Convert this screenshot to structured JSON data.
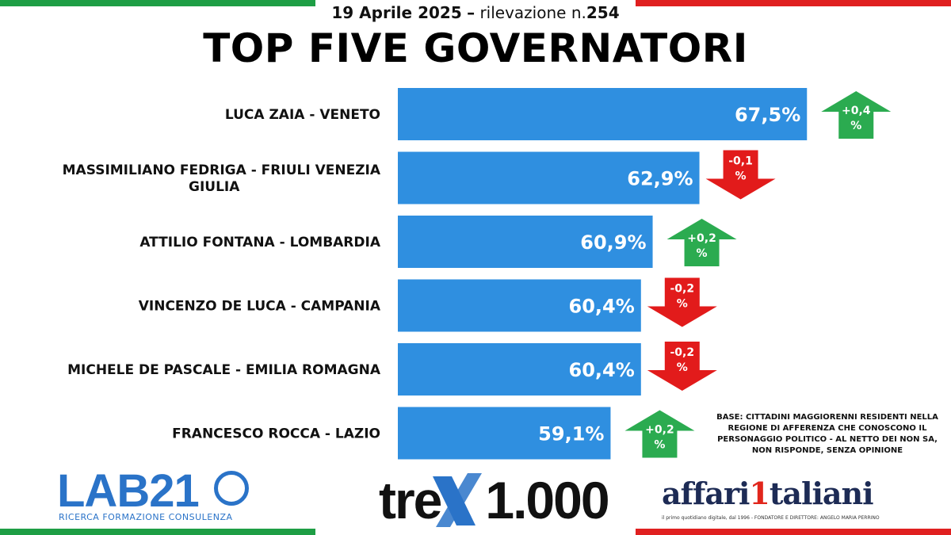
{
  "header": {
    "date": "19 Aprile 2025",
    "dash": "–",
    "survey": "rilevazione n.",
    "survey_number": "254",
    "title": "TOP FIVE GOVERNATORI"
  },
  "colors": {
    "bar": "#2f8fe0",
    "up": "#2bab50",
    "down": "#e21b1b",
    "flag_green": "#1e9e45",
    "flag_red": "#e02020"
  },
  "chart_data": {
    "type": "bar",
    "orientation": "horizontal",
    "categories": [
      "LUCA ZAIA - VENETO",
      "MASSIMILIANO FEDRIGA - FRIULI VENEZIA GIULIA",
      "ATTILIO FONTANA - LOMBARDIA",
      "VINCENZO DE LUCA - CAMPANIA",
      "MICHELE DE PASCALE - EMILIA ROMAGNA",
      "FRANCESCO ROCCA - LAZIO"
    ],
    "values": [
      67.5,
      62.9,
      60.9,
      60.4,
      60.4,
      59.1
    ],
    "value_labels": [
      "67,5%",
      "62,9%",
      "60,9%",
      "60,4%",
      "60,4%",
      "59,1%"
    ],
    "changes": [
      0.4,
      -0.1,
      0.2,
      -0.2,
      -0.2,
      0.2
    ],
    "change_labels": [
      [
        "+0,4",
        "%"
      ],
      [
        "-0,1",
        "%"
      ],
      [
        "+0,2",
        "%"
      ],
      [
        "-0,2",
        "%"
      ],
      [
        "-0,2",
        "%"
      ],
      [
        "+0,2",
        "%"
      ]
    ],
    "grid": false,
    "legend": "none"
  },
  "note": "BASE: CITTADINI MAGGIORENNI RESIDENTI NELLA REGIONE DI AFFERENZA CHE CONOSCONO IL PERSONAGGIO POLITICO - AL NETTO DEI NON SA, NON RISPONDE, SENZA OPINIONE",
  "logos": {
    "lab21": "LAB21",
    "lab21_sub": "RICERCA FORMAZIONE CONSULENZA",
    "tre": "tre",
    "tre_num": "1.000",
    "affari_a": "affari",
    "affari_one": "1",
    "affari_b": "taliani",
    "affari_sub": "il primo quotidiano digitale, dal 1996 - FONDATORE E DIRETTORE: ANGELO MARIA PERRINO"
  }
}
